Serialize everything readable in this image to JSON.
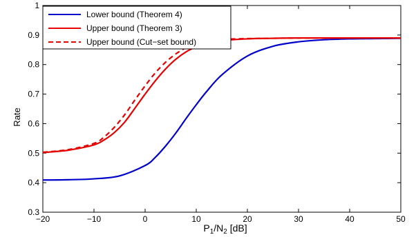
{
  "chart_data": {
    "type": "line",
    "title": "",
    "xlabel": "P1/N2 [dB]",
    "xlabel_parts": {
      "p": "P",
      "sub1": "1",
      "slash": "/N",
      "sub2": "2",
      "unit": " [dB]"
    },
    "ylabel": "Rate",
    "xlim": [
      -20,
      50
    ],
    "ylim": [
      0.3,
      1.0
    ],
    "xticks": [
      -20,
      -10,
      0,
      10,
      20,
      30,
      40,
      50
    ],
    "yticks": [
      0.3,
      0.4,
      0.5,
      0.6,
      0.7,
      0.8,
      0.9,
      1.0
    ],
    "xtick_labels": [
      "−20",
      "−10",
      "0",
      "10",
      "20",
      "30",
      "40",
      "50"
    ],
    "ytick_labels": [
      "0.3",
      "0.4",
      "0.5",
      "0.6",
      "0.7",
      "0.8",
      "0.9",
      "1"
    ],
    "grid": false,
    "legend_position": "top-left",
    "series": [
      {
        "name": "Lower bound (Theorem 4)",
        "color": "#0000cc",
        "dash": "solid",
        "x": [
          -20,
          -15,
          -10,
          -5,
          0,
          2,
          4,
          6,
          8,
          10,
          12,
          15,
          20,
          25,
          30,
          35,
          40,
          45,
          50
        ],
        "y": [
          0.409,
          0.41,
          0.413,
          0.423,
          0.458,
          0.486,
          0.524,
          0.568,
          0.617,
          0.664,
          0.708,
          0.765,
          0.829,
          0.862,
          0.877,
          0.884,
          0.887,
          0.888,
          0.889
        ]
      },
      {
        "name": "Upper bound (Theorem 3)",
        "color": "#e60000",
        "dash": "solid",
        "x": [
          -20,
          -15,
          -10,
          -8,
          -6,
          -4,
          -2,
          0,
          2,
          4,
          6,
          8,
          10,
          12,
          15,
          20,
          25,
          30,
          40,
          50
        ],
        "y": [
          0.502,
          0.51,
          0.528,
          0.545,
          0.57,
          0.605,
          0.652,
          0.7,
          0.745,
          0.785,
          0.818,
          0.843,
          0.86,
          0.871,
          0.881,
          0.887,
          0.889,
          0.89,
          0.89,
          0.89
        ]
      },
      {
        "name": "Upper bound (Cut−set bound)",
        "color": "#e60000",
        "dash": "dashed",
        "x": [
          -20,
          -15,
          -10,
          -8,
          -6,
          -4,
          -2,
          0,
          2,
          4,
          6,
          8,
          10,
          12,
          15,
          20,
          25,
          30,
          40,
          50
        ],
        "y": [
          0.503,
          0.512,
          0.533,
          0.555,
          0.588,
          0.63,
          0.68,
          0.728,
          0.772,
          0.808,
          0.836,
          0.857,
          0.87,
          0.878,
          0.885,
          0.888,
          0.889,
          0.89,
          0.89,
          0.89
        ]
      }
    ]
  }
}
